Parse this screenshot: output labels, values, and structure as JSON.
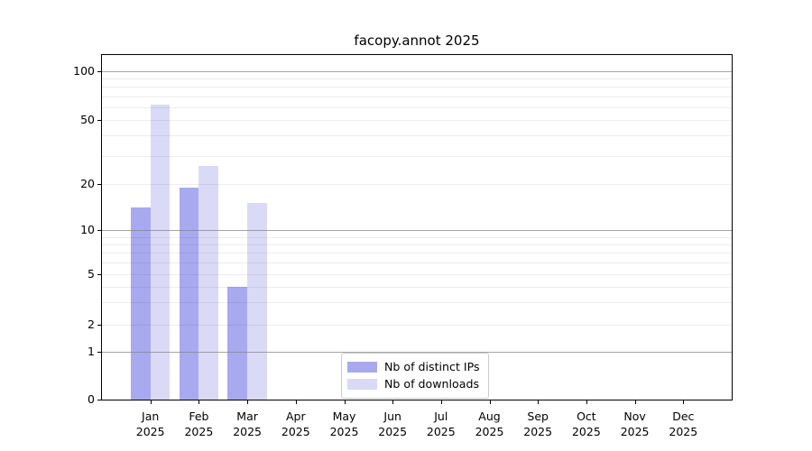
{
  "title": "facopy.annot 2025",
  "chart_data": {
    "type": "bar",
    "title": "facopy.annot 2025",
    "categories": [
      "Jan",
      "Feb",
      "Mar",
      "Apr",
      "May",
      "Jun",
      "Jul",
      "Aug",
      "Sep",
      "Oct",
      "Nov",
      "Dec"
    ],
    "year_label": "2025",
    "series": [
      {
        "name": "Nb of distinct IPs",
        "color": "#a9a9ef",
        "values": [
          14,
          19,
          4,
          0,
          0,
          0,
          0,
          0,
          0,
          0,
          0,
          0
        ]
      },
      {
        "name": "Nb of downloads",
        "color": "#dadaf7",
        "values": [
          62,
          26,
          15,
          0,
          0,
          0,
          0,
          0,
          0,
          0,
          0,
          0
        ]
      }
    ],
    "xlabel": "",
    "ylabel": "",
    "yscale": "log-like (asinh), linear below 1",
    "yticks": [
      0,
      1,
      2,
      5,
      10,
      20,
      50,
      100
    ],
    "ylim": [
      0,
      130
    ],
    "grid": {
      "major": [
        1,
        10,
        100
      ],
      "minor": [
        2,
        3,
        4,
        5,
        6,
        7,
        8,
        9,
        20,
        30,
        40,
        50,
        60,
        70,
        80,
        90
      ]
    },
    "legend_position": "lower center",
    "colors": {
      "major_grid": "#b0b0b0",
      "minor_grid": "#ececec",
      "spine": "#000000",
      "text": "#000000",
      "background": "#ffffff"
    }
  }
}
